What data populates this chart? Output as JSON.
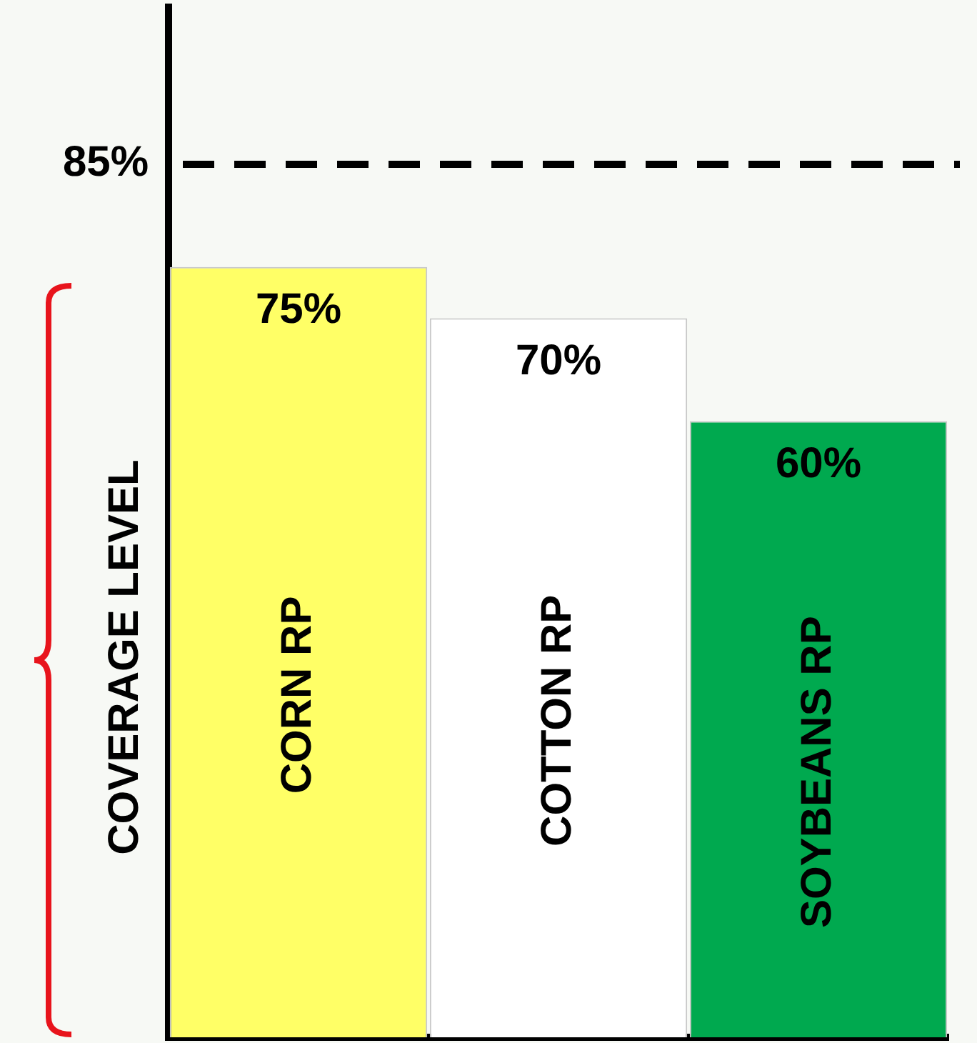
{
  "chart_data": {
    "type": "bar",
    "ylabel": "COVERAGE LEVEL",
    "categories": [
      "CORN RP",
      "COTTON RP",
      "SOYBEANS RP"
    ],
    "values": [
      75,
      70,
      60
    ],
    "colors": [
      "#ffff66",
      "#ffffff",
      "#00a94f"
    ],
    "value_labels": [
      "75%",
      "70%",
      "60%"
    ],
    "grid": false,
    "legend": false,
    "ref_lines": [
      {
        "axis": "y",
        "value": 85,
        "label": "85%",
        "color": "#000000",
        "line_style": "dashed"
      }
    ]
  }
}
